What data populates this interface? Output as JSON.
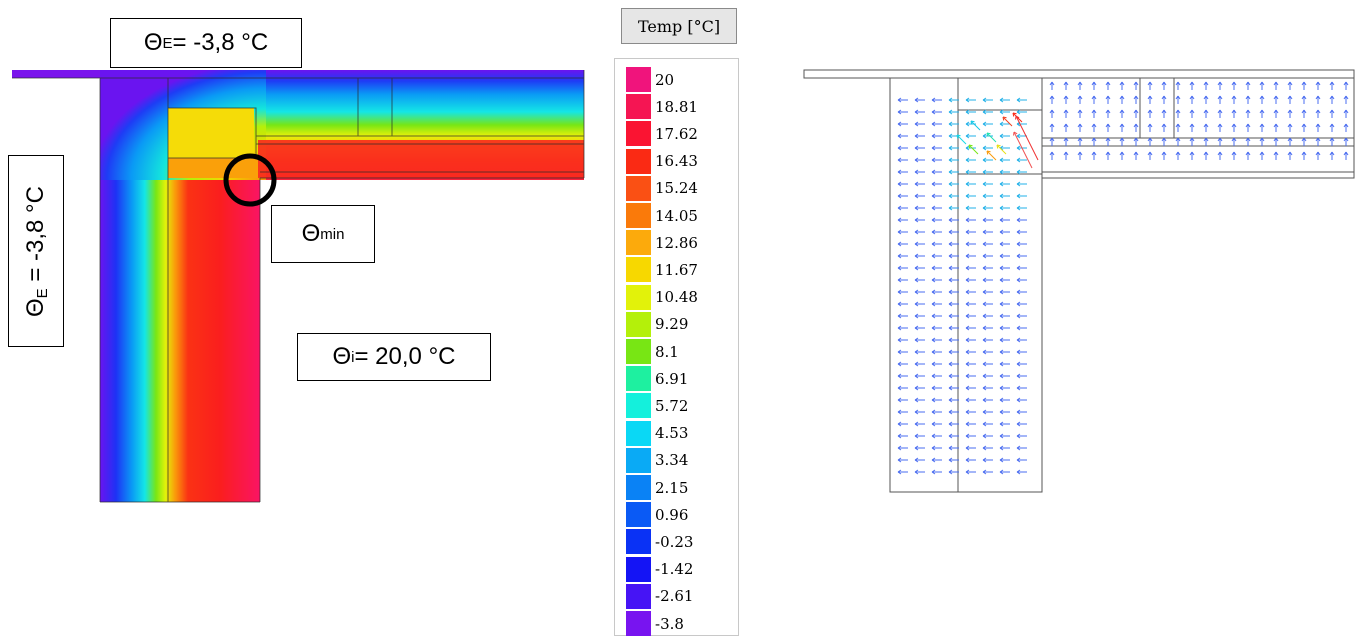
{
  "labels": {
    "theta_e_top": {
      "sym": "Θ",
      "sub": "E",
      "text": " = -3,8 °C"
    },
    "theta_e_left": {
      "sym": "Θ",
      "sub": "E",
      "text": " = -3,8 °C"
    },
    "theta_min": {
      "sym": "Θ",
      "sub": "min"
    },
    "theta_i": {
      "sym": "Θ",
      "sub": "i",
      "text": " = 20,0 °C"
    }
  },
  "legend": {
    "title": "Temp [°C]",
    "entries": [
      {
        "value": "20",
        "color": "#f0147c"
      },
      {
        "value": "18.81",
        "color": "#f51553"
      },
      {
        "value": "17.62",
        "color": "#fa1432"
      },
      {
        "value": "16.43",
        "color": "#fa2a14"
      },
      {
        "value": "15.24",
        "color": "#fa5014"
      },
      {
        "value": "14.05",
        "color": "#fa7a0a"
      },
      {
        "value": "12.86",
        "color": "#fcaa0c"
      },
      {
        "value": "11.67",
        "color": "#f7d800"
      },
      {
        "value": "10.48",
        "color": "#e2f20a"
      },
      {
        "value": "9.29",
        "color": "#b4f00a"
      },
      {
        "value": "8.1",
        "color": "#78e614"
      },
      {
        "value": "6.91",
        "color": "#1ef0a0"
      },
      {
        "value": "5.72",
        "color": "#14f0dc"
      },
      {
        "value": "4.53",
        "color": "#0ad8f5"
      },
      {
        "value": "3.34",
        "color": "#0aaaf5"
      },
      {
        "value": "2.15",
        "color": "#0a82f5"
      },
      {
        "value": "0.96",
        "color": "#0a5af5"
      },
      {
        "value": "-0.23",
        "color": "#0a32f5"
      },
      {
        "value": "-1.42",
        "color": "#1414f5"
      },
      {
        "value": "-2.61",
        "color": "#4614f5"
      },
      {
        "value": "-3.8",
        "color": "#7814f0"
      }
    ]
  }
}
